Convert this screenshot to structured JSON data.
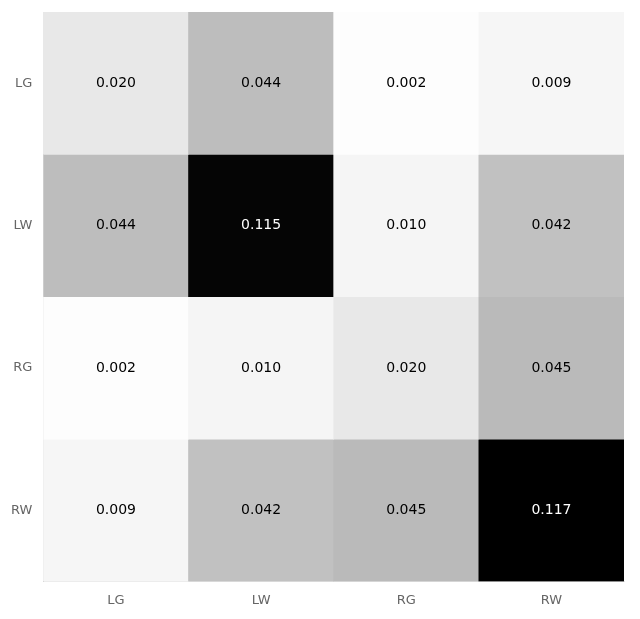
{
  "chart_data": {
    "type": "heatmap",
    "categories": [
      "LG",
      "LW",
      "RG",
      "RW"
    ],
    "matrix": [
      [
        0.02,
        0.044,
        0.002,
        0.009
      ],
      [
        0.044,
        0.115,
        0.01,
        0.042
      ],
      [
        0.002,
        0.01,
        0.02,
        0.045
      ],
      [
        0.009,
        0.042,
        0.045,
        0.117
      ]
    ],
    "value_labels": [
      [
        "0.020",
        "0.044",
        "0.002",
        "0.009"
      ],
      [
        "0.044",
        "0.115",
        "0.010",
        "0.042"
      ],
      [
        "0.002",
        "0.010",
        "0.020",
        "0.045"
      ],
      [
        "0.009",
        "0.042",
        "0.045",
        "0.117"
      ]
    ],
    "color_range": [
      0.0,
      0.117
    ],
    "color": "Greys",
    "data_labels": true,
    "grid": false
  }
}
